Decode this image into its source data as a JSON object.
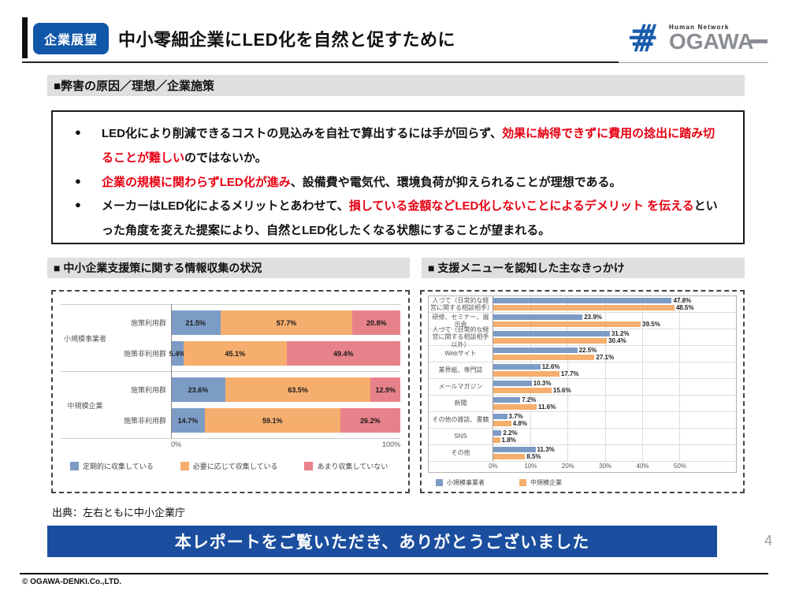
{
  "header": {
    "badge": "企業展望",
    "title": "中小零細企業にLED化を自然と促すために",
    "logo": {
      "tagline": "Human Network",
      "brand": "OGAWA"
    }
  },
  "colors": {
    "accent_blue": "#1057a8",
    "banner_blue": "#1b4e9e",
    "highlight_red": "#e60012",
    "bar_blue": "#7c9cc6",
    "bar_orange": "#f5ae6d",
    "bar_salmon": "#e8828a"
  },
  "issue_section": {
    "title": "■弊害の原因／理想／企業施策",
    "bullets": [
      {
        "marker": "●",
        "segments": [
          {
            "text": "LED化により削減できるコストの見込みを自社で算出するには手が回らず、",
            "red": false
          },
          {
            "text": "効果に納得できずに費用の捻出に踏み切ることが難しい",
            "red": true
          },
          {
            "text": "のではないか。",
            "red": false
          }
        ]
      },
      {
        "marker": "●",
        "segments": [
          {
            "text": "企業の規模に関わらずLED化が進み",
            "red": true
          },
          {
            "text": "、設備費や電気代、環境負荷が抑えられることが理想である。",
            "red": false
          }
        ]
      },
      {
        "marker": "●",
        "segments": [
          {
            "text": "メーカーはLED化によるメリットとあわせて、",
            "red": false
          },
          {
            "text": "損している金額などLED化しないことによるデメリット を伝える",
            "red": true
          },
          {
            "text": "といった角度を変えた提案により、自然とLED化したくなる状態にすることが望まれる。",
            "red": false
          }
        ]
      }
    ]
  },
  "chart_data": [
    {
      "type": "bar",
      "orientation": "horizontal",
      "stacked": true,
      "section_title": "■ 中小企業支援策に関する情報収集の状況",
      "groups": [
        {
          "label": "小規模事業者",
          "rows": [
            {
              "label": "施策利用群",
              "values": [
                21.5,
                57.7,
                20.8
              ]
            },
            {
              "label": "施策非利用群",
              "values": [
                5.4,
                45.1,
                49.4
              ]
            }
          ]
        },
        {
          "label": "中規模企業",
          "rows": [
            {
              "label": "施策利用群",
              "values": [
                23.6,
                63.5,
                12.9
              ]
            },
            {
              "label": "施策非利用群",
              "values": [
                14.7,
                59.1,
                26.2
              ]
            }
          ]
        }
      ],
      "series": [
        {
          "name": "定期的に収集している",
          "color": "#7c9cc6"
        },
        {
          "name": "必要に応じて収集している",
          "color": "#f5ae6d"
        },
        {
          "name": "あまり収集していない",
          "color": "#e8828a"
        }
      ],
      "xlim": [
        0,
        100
      ],
      "x_ticks": [
        "0%",
        "100%"
      ],
      "grid": false,
      "legend_position": "bottom"
    },
    {
      "type": "bar",
      "orientation": "horizontal",
      "stacked": false,
      "section_title": "■ 支援メニューを認知した主なきっかけ",
      "categories": [
        "人づて（日常的な経営に関する相談相手）",
        "研修、セミナー、展示会",
        "人づて（日常的な経営に関する相談相手以外）",
        "Webサイト",
        "業界紙、専門誌",
        "メールマガジン",
        "新聞",
        "その他の雑誌、書籍",
        "SNS",
        "その他"
      ],
      "series": [
        {
          "name": "小規模事業者",
          "color": "#7c9cc6",
          "values": [
            47.8,
            23.9,
            31.2,
            22.5,
            12.6,
            10.3,
            7.2,
            3.7,
            2.2,
            11.3
          ]
        },
        {
          "name": "中規模企業",
          "color": "#f5ae6d",
          "values": [
            48.5,
            39.5,
            30.4,
            27.1,
            17.7,
            15.6,
            11.6,
            4.8,
            1.8,
            8.5
          ]
        }
      ],
      "xlim": [
        0,
        65
      ],
      "x_ticks": [
        0,
        10,
        20,
        30,
        40,
        50
      ],
      "grid": true,
      "legend_position": "bottom"
    }
  ],
  "source_note": "出典：左右ともに中小企業庁",
  "banner": {
    "text": "本レポートをご覧いただき、ありがとうございました",
    "page_number": "4"
  },
  "footer": {
    "copyright": "© OGAWA-DENKI.Co.,LTD."
  }
}
